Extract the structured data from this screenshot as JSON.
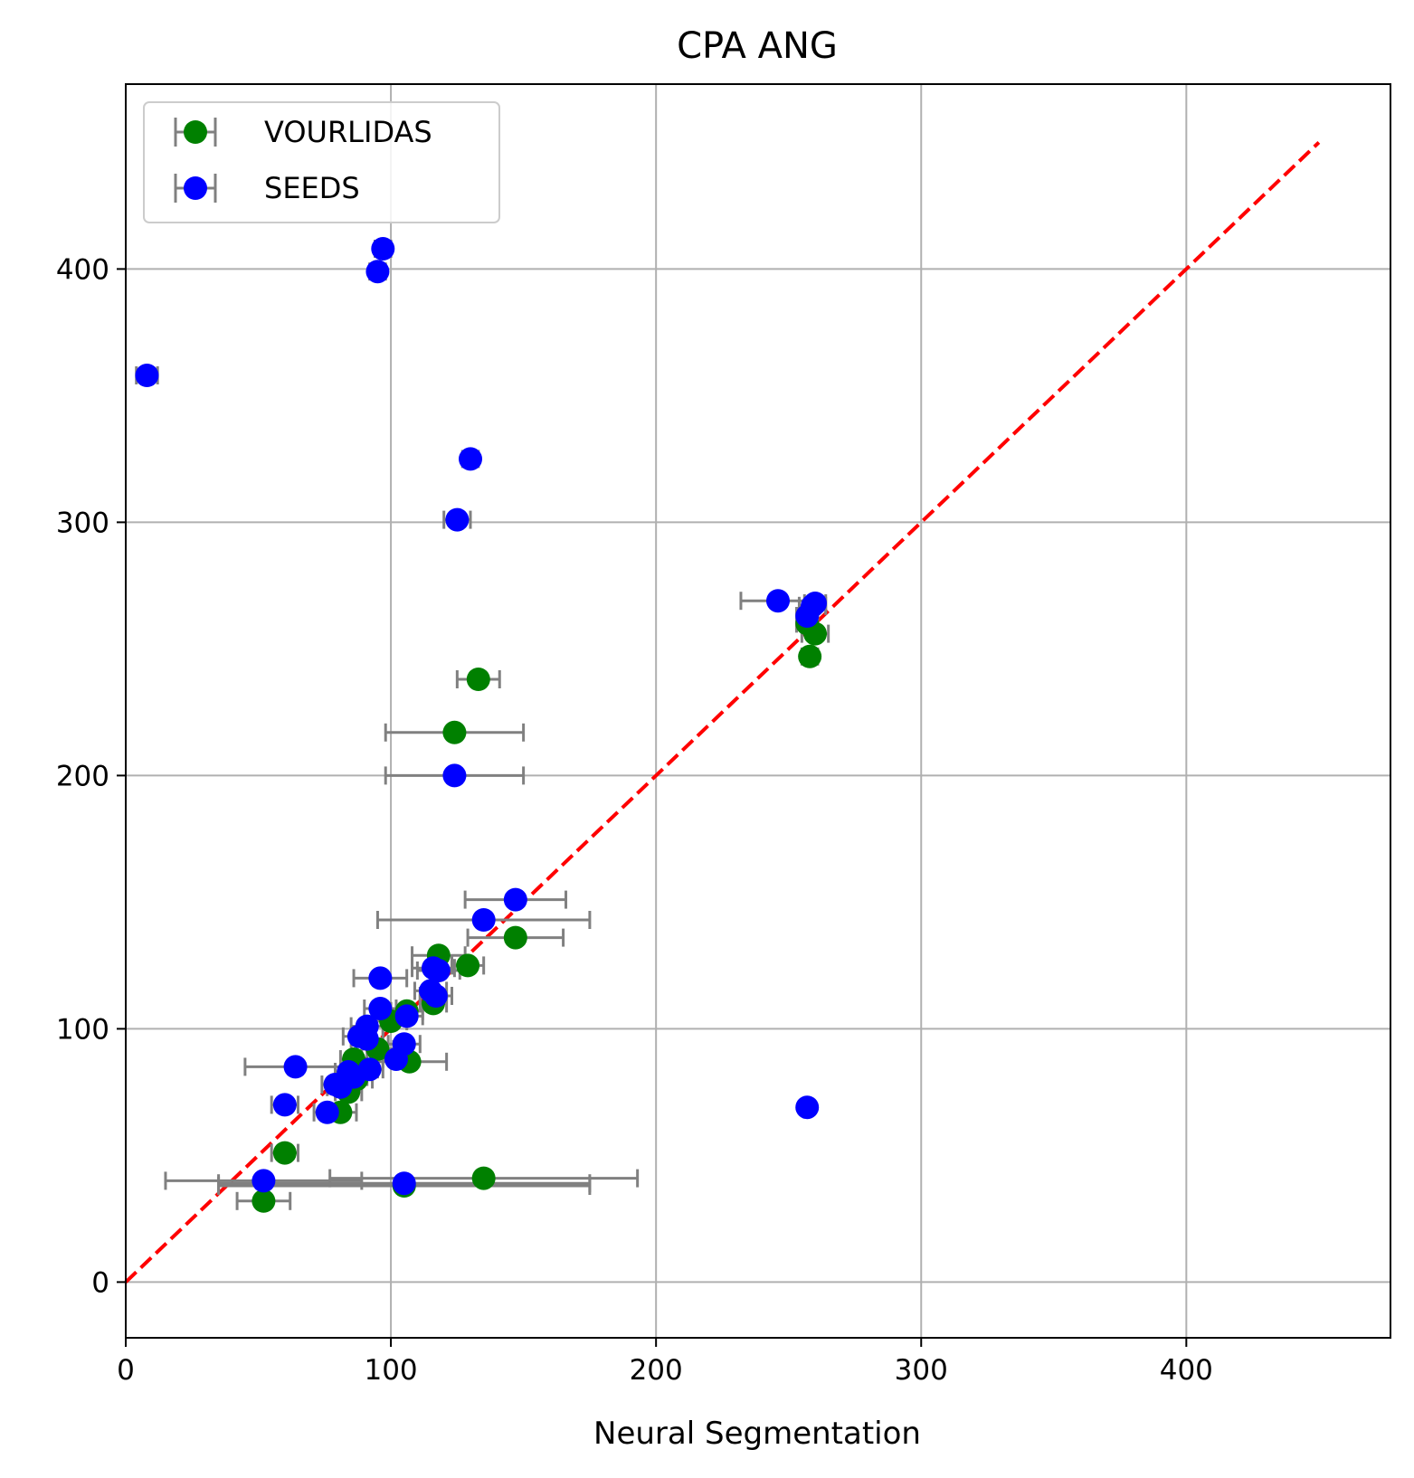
{
  "chart_data": {
    "type": "scatter",
    "title": "CPA ANG",
    "xlabel": "Neural Segmentation",
    "ylabel": "",
    "xlim": [
      0,
      477
    ],
    "ylim": [
      -22,
      473
    ],
    "xticks": [
      0,
      100,
      200,
      300,
      400
    ],
    "yticks": [
      0,
      100,
      200,
      300,
      400
    ],
    "grid": true,
    "legend_position": "upper left",
    "reference_line": {
      "from": [
        0,
        0
      ],
      "to": [
        450,
        450
      ],
      "color": "#ff0000",
      "style": "dashed"
    },
    "error_bar_color": "#808080",
    "series": [
      {
        "name": "VOURLIDAS",
        "color": "#008000",
        "points": [
          {
            "x": 52,
            "y": 32,
            "xerr": 10
          },
          {
            "x": 60,
            "y": 51,
            "xerr": 5
          },
          {
            "x": 81,
            "y": 67,
            "xerr": 6
          },
          {
            "x": 84,
            "y": 75,
            "xerr": 5
          },
          {
            "x": 87,
            "y": 80,
            "xerr": 6
          },
          {
            "x": 90,
            "y": 84,
            "xerr": 5
          },
          {
            "x": 86,
            "y": 88,
            "xerr": 5
          },
          {
            "x": 95,
            "y": 92,
            "xerr": 6
          },
          {
            "x": 107,
            "y": 87,
            "xerr": 14
          },
          {
            "x": 100,
            "y": 103,
            "xerr": 6
          },
          {
            "x": 106,
            "y": 107,
            "xerr": 6
          },
          {
            "x": 116,
            "y": 110,
            "xerr": 5
          },
          {
            "x": 118,
            "y": 129,
            "xerr": 10
          },
          {
            "x": 129,
            "y": 125,
            "xerr": 6
          },
          {
            "x": 147,
            "y": 136,
            "xerr": 18
          },
          {
            "x": 124,
            "y": 217,
            "xerr": 26
          },
          {
            "x": 133,
            "y": 238,
            "xerr": 8
          },
          {
            "x": 105,
            "y": 38,
            "xerr": 70
          },
          {
            "x": 135,
            "y": 41,
            "xerr": 58
          },
          {
            "x": 258,
            "y": 247,
            "xerr": 3
          },
          {
            "x": 257,
            "y": 260,
            "xerr": 4
          },
          {
            "x": 260,
            "y": 256,
            "xerr": 5
          }
        ]
      },
      {
        "name": "SEEDS",
        "color": "#0000ff",
        "points": [
          {
            "x": 8,
            "y": 358,
            "xerr": 4
          },
          {
            "x": 95,
            "y": 399,
            "xerr": 3
          },
          {
            "x": 97,
            "y": 408,
            "xerr": 3
          },
          {
            "x": 130,
            "y": 325,
            "xerr": 3
          },
          {
            "x": 125,
            "y": 301,
            "xerr": 5
          },
          {
            "x": 124,
            "y": 200,
            "xerr": 26
          },
          {
            "x": 246,
            "y": 269,
            "xerr": 14
          },
          {
            "x": 257,
            "y": 263,
            "xerr": 4
          },
          {
            "x": 259,
            "y": 267,
            "xerr": 5
          },
          {
            "x": 260,
            "y": 268,
            "xerr": 4
          },
          {
            "x": 257,
            "y": 69,
            "xerr": 2
          },
          {
            "x": 147,
            "y": 151,
            "xerr": 19
          },
          {
            "x": 135,
            "y": 143,
            "xerr": 40
          },
          {
            "x": 96,
            "y": 120,
            "xerr": 10
          },
          {
            "x": 116,
            "y": 124,
            "xerr": 8
          },
          {
            "x": 118,
            "y": 123,
            "xerr": 8
          },
          {
            "x": 115,
            "y": 115,
            "xerr": 6
          },
          {
            "x": 117,
            "y": 113,
            "xerr": 6
          },
          {
            "x": 96,
            "y": 108,
            "xerr": 6
          },
          {
            "x": 106,
            "y": 105,
            "xerr": 6
          },
          {
            "x": 91,
            "y": 101,
            "xerr": 6
          },
          {
            "x": 88,
            "y": 97,
            "xerr": 6
          },
          {
            "x": 91,
            "y": 96,
            "xerr": 6
          },
          {
            "x": 105,
            "y": 94,
            "xerr": 6
          },
          {
            "x": 102,
            "y": 88,
            "xerr": 5
          },
          {
            "x": 64,
            "y": 85,
            "xerr": 19
          },
          {
            "x": 92,
            "y": 84,
            "xerr": 5
          },
          {
            "x": 84,
            "y": 83,
            "xerr": 5
          },
          {
            "x": 86,
            "y": 81,
            "xerr": 5
          },
          {
            "x": 79,
            "y": 78,
            "xerr": 5
          },
          {
            "x": 81,
            "y": 77,
            "xerr": 5
          },
          {
            "x": 60,
            "y": 70,
            "xerr": 5
          },
          {
            "x": 76,
            "y": 67,
            "xerr": 5
          },
          {
            "x": 52,
            "y": 40,
            "xerr": 37
          },
          {
            "x": 105,
            "y": 39,
            "xerr": 70
          }
        ]
      }
    ]
  }
}
